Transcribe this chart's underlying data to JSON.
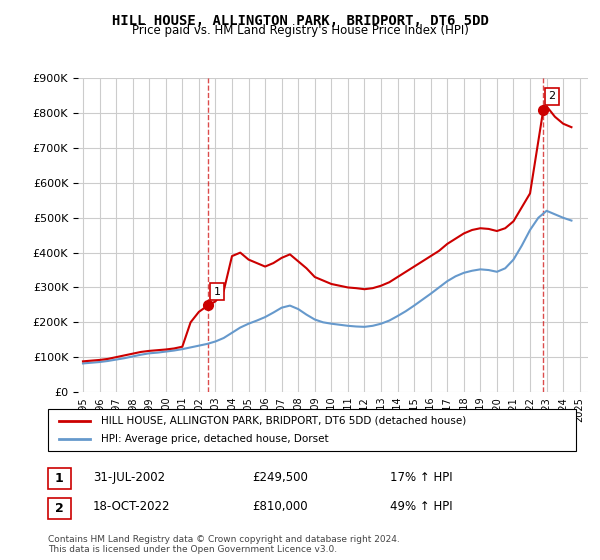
{
  "title": "HILL HOUSE, ALLINGTON PARK, BRIDPORT, DT6 5DD",
  "subtitle": "Price paid vs. HM Land Registry's House Price Index (HPI)",
  "legend_line1": "HILL HOUSE, ALLINGTON PARK, BRIDPORT, DT6 5DD (detached house)",
  "legend_line2": "HPI: Average price, detached house, Dorset",
  "footnote": "Contains HM Land Registry data © Crown copyright and database right 2024.\nThis data is licensed under the Open Government Licence v3.0.",
  "sale1_label": "1",
  "sale1_date": "31-JUL-2002",
  "sale1_price": "£249,500",
  "sale1_hpi": "17% ↑ HPI",
  "sale2_label": "2",
  "sale2_date": "18-OCT-2022",
  "sale2_price": "£810,000",
  "sale2_hpi": "49% ↑ HPI",
  "red_color": "#cc0000",
  "blue_color": "#6699cc",
  "ylim": [
    0,
    900000
  ],
  "yticks": [
    0,
    100000,
    200000,
    300000,
    400000,
    500000,
    600000,
    700000,
    800000,
    900000
  ],
  "xlim_start": 1995.0,
  "xlim_end": 2025.5,
  "sale1_x": 2002.58,
  "sale1_y": 249500,
  "sale2_x": 2022.8,
  "sale2_y": 810000,
  "red_x": [
    1995.0,
    1995.5,
    1996.0,
    1996.5,
    1997.0,
    1997.5,
    1998.0,
    1998.5,
    1999.0,
    1999.5,
    2000.0,
    2000.5,
    2001.0,
    2001.5,
    2002.0,
    2002.58,
    2003.0,
    2003.5,
    2004.0,
    2004.5,
    2005.0,
    2005.5,
    2006.0,
    2006.5,
    2007.0,
    2007.5,
    2008.0,
    2008.5,
    2009.0,
    2009.5,
    2010.0,
    2010.5,
    2011.0,
    2011.5,
    2012.0,
    2012.5,
    2013.0,
    2013.5,
    2014.0,
    2014.5,
    2015.0,
    2015.5,
    2016.0,
    2016.5,
    2017.0,
    2017.5,
    2018.0,
    2018.5,
    2019.0,
    2019.5,
    2020.0,
    2020.5,
    2021.0,
    2021.5,
    2022.0,
    2022.8,
    2023.0,
    2023.5,
    2024.0,
    2024.5
  ],
  "red_y": [
    88000,
    90000,
    92000,
    95000,
    100000,
    105000,
    110000,
    115000,
    118000,
    120000,
    122000,
    125000,
    130000,
    200000,
    230000,
    249500,
    260000,
    290000,
    390000,
    400000,
    380000,
    370000,
    360000,
    370000,
    385000,
    395000,
    375000,
    355000,
    330000,
    320000,
    310000,
    305000,
    300000,
    298000,
    295000,
    298000,
    305000,
    315000,
    330000,
    345000,
    360000,
    375000,
    390000,
    405000,
    425000,
    440000,
    455000,
    465000,
    470000,
    468000,
    462000,
    470000,
    490000,
    530000,
    570000,
    810000,
    820000,
    790000,
    770000,
    760000
  ],
  "blue_x": [
    1995.0,
    1995.5,
    1996.0,
    1996.5,
    1997.0,
    1997.5,
    1998.0,
    1998.5,
    1999.0,
    1999.5,
    2000.0,
    2000.5,
    2001.0,
    2001.5,
    2002.0,
    2002.5,
    2003.0,
    2003.5,
    2004.0,
    2004.5,
    2005.0,
    2005.5,
    2006.0,
    2006.5,
    2007.0,
    2007.5,
    2008.0,
    2008.5,
    2009.0,
    2009.5,
    2010.0,
    2010.5,
    2011.0,
    2011.5,
    2012.0,
    2012.5,
    2013.0,
    2013.5,
    2014.0,
    2014.5,
    2015.0,
    2015.5,
    2016.0,
    2016.5,
    2017.0,
    2017.5,
    2018.0,
    2018.5,
    2019.0,
    2019.5,
    2020.0,
    2020.5,
    2021.0,
    2021.5,
    2022.0,
    2022.5,
    2023.0,
    2023.5,
    2024.0,
    2024.5
  ],
  "blue_y": [
    82000,
    84000,
    86000,
    89000,
    93000,
    97000,
    102000,
    107000,
    111000,
    113000,
    116000,
    119000,
    123000,
    128000,
    133000,
    138000,
    145000,
    155000,
    170000,
    185000,
    196000,
    205000,
    215000,
    228000,
    242000,
    248000,
    238000,
    222000,
    208000,
    200000,
    196000,
    193000,
    190000,
    188000,
    187000,
    190000,
    196000,
    205000,
    218000,
    232000,
    248000,
    265000,
    282000,
    300000,
    318000,
    332000,
    342000,
    348000,
    352000,
    350000,
    345000,
    355000,
    380000,
    420000,
    465000,
    500000,
    520000,
    510000,
    500000,
    492000
  ]
}
